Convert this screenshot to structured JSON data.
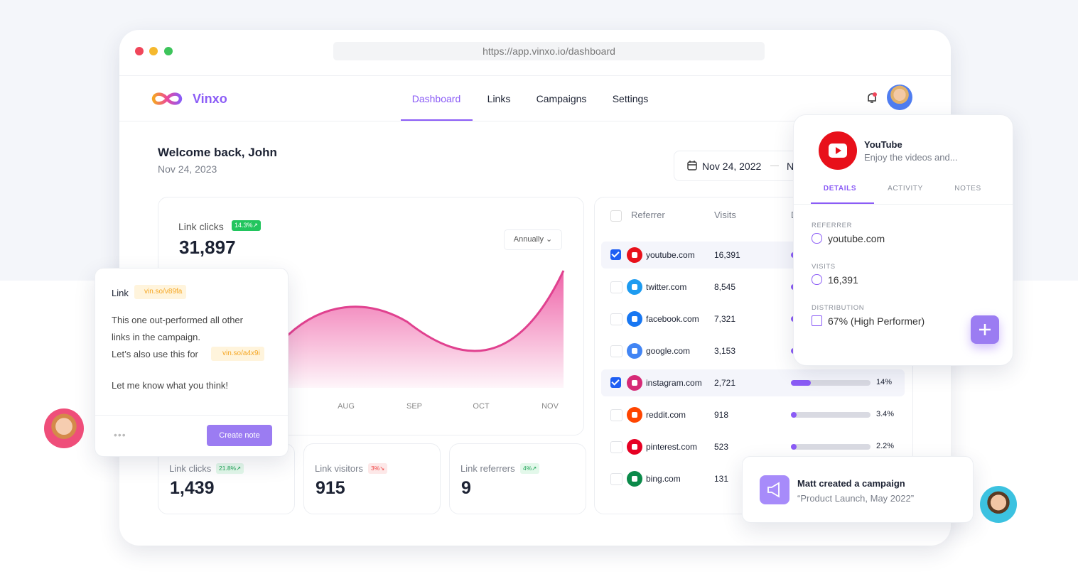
{
  "browser": {
    "url": "https://app.vinxo.io/dashboard"
  },
  "nav": {
    "brand": "Vinxo",
    "items": [
      "Dashboard",
      "Links",
      "Campaigns",
      "Settings"
    ],
    "active": 0
  },
  "welcome": {
    "title": "Welcome back, John",
    "date": "Nov 24, 2023"
  },
  "date_range": {
    "start": "Nov 24, 2022",
    "end": "N"
  },
  "link_clicks": {
    "label": "Link clicks",
    "badge": "14.3%↗",
    "value": "31,897",
    "period": "Annually",
    "x_labels": [
      "AUG",
      "SEP",
      "OCT",
      "NOV"
    ]
  },
  "stats": [
    {
      "label": "Link clicks",
      "badge": "21.8%↗",
      "trend": "up",
      "value": "1,439"
    },
    {
      "label": "Link visitors",
      "badge": "3%↘",
      "trend": "down",
      "value": "915"
    },
    {
      "label": "Link referrers",
      "badge": "4%↗",
      "trend": "up",
      "value": "9"
    }
  ],
  "referrers": {
    "headers": [
      "Referrer",
      "Visits",
      "D"
    ],
    "rows": [
      {
        "domain": "youtube.com",
        "visits": "16,391",
        "checked": true
      },
      {
        "domain": "twitter.com",
        "visits": "8,545",
        "checked": false
      },
      {
        "domain": "facebook.com",
        "visits": "7,321",
        "checked": false
      },
      {
        "domain": "google.com",
        "visits": "3,153",
        "checked": false
      },
      {
        "domain": "instagram.com",
        "visits": "2,721",
        "checked": true,
        "share": {
          "value": 14,
          "label": "14%"
        }
      },
      {
        "domain": "reddit.com",
        "visits": "918",
        "checked": false,
        "share": {
          "value": 3.4,
          "label": "3.4%"
        }
      },
      {
        "domain": "pinterest.com",
        "visits": "523",
        "checked": false,
        "share": {
          "value": 2.2,
          "label": "2.2%"
        }
      },
      {
        "domain": "bing.com",
        "visits": "131",
        "checked": false
      }
    ]
  },
  "note": {
    "title": "Link",
    "tag1": "vin.so/v89fa",
    "lines": [
      "This one out-performed all other",
      "links in the campaign.",
      "Let’s also use this for",
      "Let me know what you think!"
    ],
    "tag2": "vin.so/a4x9i",
    "button": "Create note"
  },
  "detail": {
    "title": "YouTube",
    "subtitle": "Enjoy the videos and...",
    "tabs": [
      "DETAILS",
      "ACTIVITY",
      "NOTES"
    ],
    "fields": [
      {
        "label": "REFERRER",
        "value": "youtube.com"
      },
      {
        "label": "VISITS",
        "value": "16,391"
      },
      {
        "label": "DISTRIBUTION",
        "value": "67% (High Performer)"
      }
    ]
  },
  "toast": {
    "title": "Matt created a campaign",
    "subtitle": "“Product Launch, May 2022”"
  }
}
